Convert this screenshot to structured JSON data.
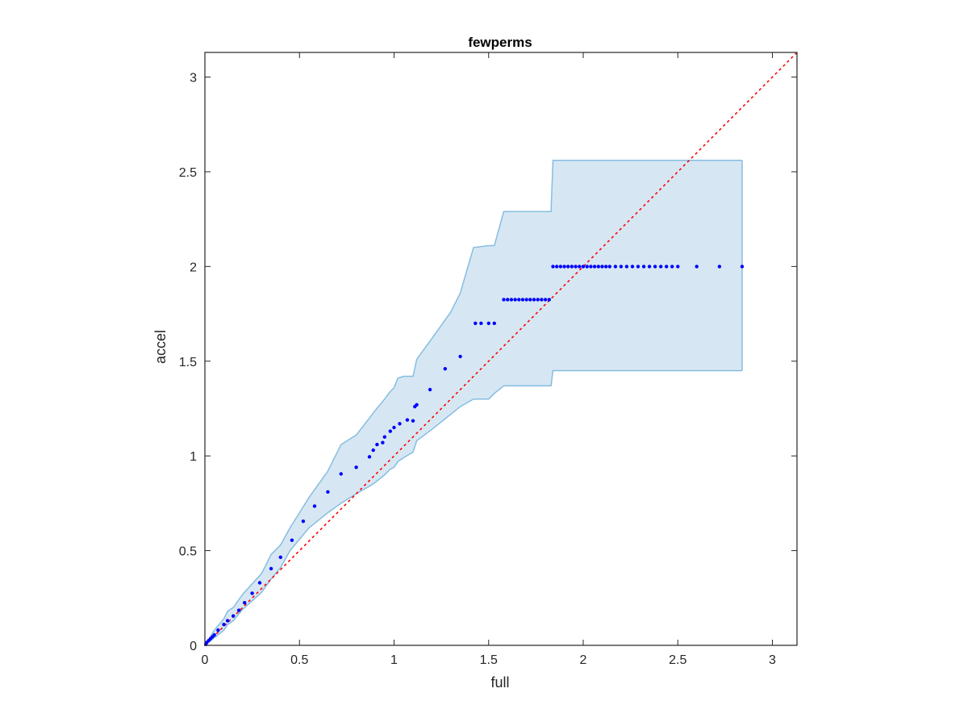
{
  "chart_data": {
    "type": "scatter",
    "title": "fewperms",
    "xlabel": "full",
    "ylabel": "accel",
    "xlim": [
      0,
      3.13
    ],
    "ylim": [
      0,
      3.13
    ],
    "x_ticks": [
      0,
      0.5,
      1,
      1.5,
      2,
      2.5,
      3
    ],
    "y_ticks": [
      0,
      0.5,
      1,
      1.5,
      2,
      2.5,
      3
    ],
    "x_tick_labels": [
      "0",
      "0.5",
      "1",
      "1.5",
      "2",
      "2.5",
      "3"
    ],
    "y_tick_labels": [
      "0",
      "0.5",
      "1",
      "1.5",
      "2",
      "2.5",
      "3"
    ],
    "grid": false,
    "reference_line": {
      "style": "dotted",
      "color": "#ff0000",
      "from": [
        0,
        0
      ],
      "to": [
        3.13,
        3.13
      ]
    },
    "band": {
      "fill": "#d6e7f3",
      "stroke": "#86bde0",
      "x": [
        0,
        0.05,
        0.1,
        0.12,
        0.15,
        0.2,
        0.3,
        0.35,
        0.4,
        0.45,
        0.5,
        0.55,
        0.65,
        0.72,
        0.8,
        0.87,
        0.9,
        0.95,
        0.98,
        1.0,
        1.02,
        1.05,
        1.1,
        1.12,
        1.2,
        1.3,
        1.35,
        1.42,
        1.5,
        1.53,
        1.58,
        1.83,
        1.84,
        2.84
      ],
      "upper": [
        0,
        0.08,
        0.14,
        0.18,
        0.2,
        0.27,
        0.38,
        0.48,
        0.53,
        0.62,
        0.7,
        0.78,
        0.92,
        1.06,
        1.11,
        1.2,
        1.24,
        1.3,
        1.34,
        1.36,
        1.41,
        1.42,
        1.42,
        1.51,
        1.62,
        1.76,
        1.86,
        2.1,
        2.11,
        2.11,
        2.29,
        2.29,
        2.56,
        2.56
      ],
      "lower": [
        0,
        0.04,
        0.08,
        0.11,
        0.13,
        0.19,
        0.28,
        0.35,
        0.41,
        0.5,
        0.56,
        0.62,
        0.7,
        0.75,
        0.8,
        0.84,
        0.86,
        0.9,
        0.93,
        0.94,
        0.97,
        0.99,
        1.02,
        1.08,
        1.14,
        1.22,
        1.26,
        1.3,
        1.3,
        1.33,
        1.37,
        1.37,
        1.45,
        1.45
      ]
    },
    "series": [
      {
        "color": "#0000ff",
        "x": [
          0.005,
          0.01,
          0.02,
          0.03,
          0.04,
          0.05,
          0.07,
          0.1,
          0.12,
          0.15,
          0.18,
          0.21,
          0.25,
          0.29,
          0.35,
          0.4,
          0.46,
          0.52,
          0.58,
          0.65,
          0.72,
          0.8,
          0.87,
          0.89,
          0.91,
          0.94,
          0.95,
          0.98,
          1.0,
          1.03,
          1.07,
          1.1,
          1.11,
          1.12,
          1.19,
          1.27,
          1.35,
          1.43,
          1.46,
          1.5,
          1.53,
          1.58,
          1.6,
          1.62,
          1.64,
          1.66,
          1.68,
          1.7,
          1.72,
          1.74,
          1.76,
          1.78,
          1.8,
          1.82,
          1.84,
          1.86,
          1.88,
          1.9,
          1.92,
          1.94,
          1.96,
          1.98,
          2.0,
          2.02,
          2.04,
          2.06,
          2.08,
          2.1,
          2.12,
          2.14,
          2.17,
          2.2,
          2.23,
          2.26,
          2.29,
          2.32,
          2.35,
          2.38,
          2.41,
          2.44,
          2.47,
          2.5,
          2.6,
          2.72,
          2.84
        ],
        "y": [
          0.005,
          0.015,
          0.025,
          0.035,
          0.045,
          0.055,
          0.08,
          0.11,
          0.13,
          0.155,
          0.185,
          0.225,
          0.275,
          0.33,
          0.405,
          0.465,
          0.555,
          0.655,
          0.735,
          0.81,
          0.905,
          0.94,
          0.995,
          1.03,
          1.06,
          1.07,
          1.1,
          1.13,
          1.15,
          1.17,
          1.19,
          1.185,
          1.26,
          1.27,
          1.35,
          1.46,
          1.525,
          1.7,
          1.7,
          1.7,
          1.7,
          1.825,
          1.825,
          1.825,
          1.825,
          1.825,
          1.825,
          1.825,
          1.825,
          1.825,
          1.825,
          1.825,
          1.825,
          1.825,
          2.0,
          2.0,
          2.0,
          2.0,
          2.0,
          2.0,
          2.0,
          2.0,
          2.0,
          2.0,
          2.0,
          2.0,
          2.0,
          2.0,
          2.0,
          2.0,
          2.0,
          2.0,
          2.0,
          2.0,
          2.0,
          2.0,
          2.0,
          2.0,
          2.0,
          2.0,
          2.0,
          2.0,
          2.0,
          2.0,
          2.0
        ]
      }
    ]
  }
}
